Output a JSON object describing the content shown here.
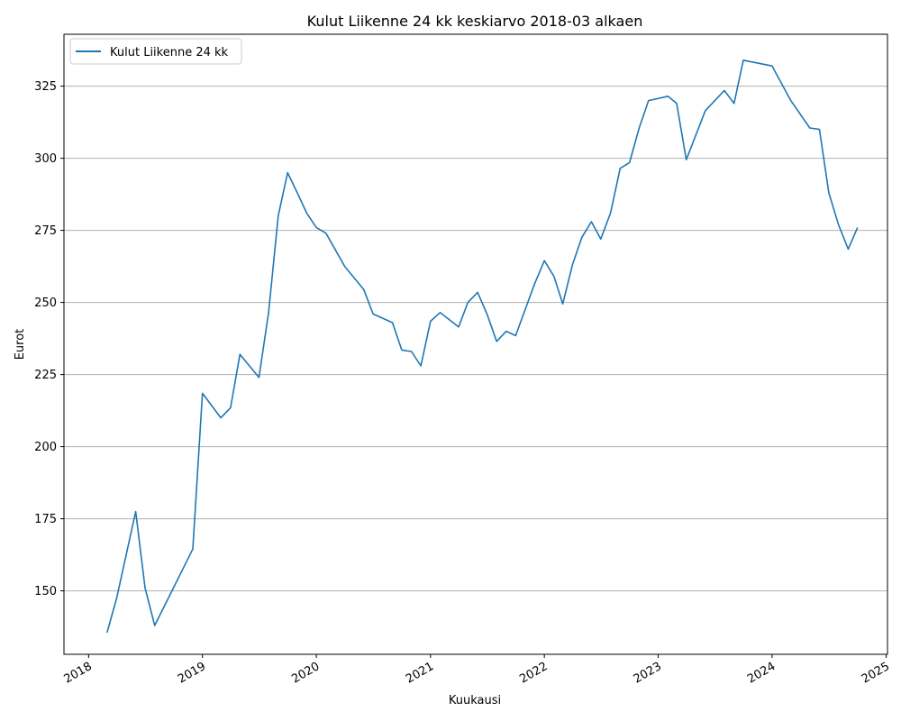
{
  "chart_data": {
    "type": "line",
    "title": "Kulut Liikenne 24 kk keskiarvo 2018-03 alkaen",
    "xlabel": "Kuukausi",
    "ylabel": "Eurot",
    "xlim": [
      "2017-10-14",
      "2025-01-05"
    ],
    "ylim": [
      128,
      343
    ],
    "y_ticks": [
      150,
      175,
      200,
      225,
      250,
      275,
      300,
      325
    ],
    "x_ticks": [
      "2018",
      "2019",
      "2020",
      "2021",
      "2022",
      "2023",
      "2024",
      "2025"
    ],
    "grid": "horizontal",
    "legend_position": "top-left",
    "color": "#1f77b4",
    "series": [
      {
        "name": "Kulut Liikenne 24 kk",
        "points": [
          [
            "2018-03-01",
            135.5
          ],
          [
            "2018-04-01",
            147.5
          ],
          [
            "2018-06-01",
            177.5
          ],
          [
            "2018-07-01",
            151.0
          ],
          [
            "2018-08-01",
            138.0
          ],
          [
            "2018-12-01",
            164.5
          ],
          [
            "2019-01-01",
            218.5
          ],
          [
            "2019-03-01",
            210.0
          ],
          [
            "2019-04-01",
            213.5
          ],
          [
            "2019-05-01",
            232.0
          ],
          [
            "2019-07-01",
            224.0
          ],
          [
            "2019-08-01",
            246.5
          ],
          [
            "2019-09-01",
            280.0
          ],
          [
            "2019-10-01",
            295.0
          ],
          [
            "2019-11-01",
            288.0
          ],
          [
            "2019-12-01",
            281.0
          ],
          [
            "2020-01-01",
            276.0
          ],
          [
            "2020-02-01",
            274.0
          ],
          [
            "2020-04-01",
            262.5
          ],
          [
            "2020-06-01",
            254.5
          ],
          [
            "2020-07-01",
            246.0
          ],
          [
            "2020-09-01",
            243.0
          ],
          [
            "2020-10-01",
            233.5
          ],
          [
            "2020-11-01",
            233.0
          ],
          [
            "2020-12-01",
            228.0
          ],
          [
            "2021-01-01",
            243.5
          ],
          [
            "2021-02-01",
            246.5
          ],
          [
            "2021-04-01",
            241.5
          ],
          [
            "2021-05-01",
            250.0
          ],
          [
            "2021-06-01",
            253.5
          ],
          [
            "2021-07-01",
            246.0
          ],
          [
            "2021-08-01",
            236.5
          ],
          [
            "2021-09-01",
            240.0
          ],
          [
            "2021-10-01",
            238.5
          ],
          [
            "2021-12-01",
            256.5
          ],
          [
            "2022-01-01",
            264.5
          ],
          [
            "2022-02-01",
            259.0
          ],
          [
            "2022-03-01",
            249.5
          ],
          [
            "2022-04-01",
            263.0
          ],
          [
            "2022-05-01",
            272.5
          ],
          [
            "2022-06-01",
            278.0
          ],
          [
            "2022-07-01",
            272.0
          ],
          [
            "2022-08-01",
            281.0
          ],
          [
            "2022-09-01",
            296.5
          ],
          [
            "2022-10-01",
            298.5
          ],
          [
            "2022-11-01",
            310.5
          ],
          [
            "2022-12-01",
            320.0
          ],
          [
            "2023-02-01",
            321.5
          ],
          [
            "2023-03-01",
            319.0
          ],
          [
            "2023-04-01",
            299.5
          ],
          [
            "2023-06-01",
            316.5
          ],
          [
            "2023-08-01",
            323.5
          ],
          [
            "2023-09-01",
            319.0
          ],
          [
            "2023-10-01",
            334.0
          ],
          [
            "2024-01-01",
            332.0
          ],
          [
            "2024-03-01",
            320.0
          ],
          [
            "2024-05-01",
            310.5
          ],
          [
            "2024-06-01",
            310.0
          ],
          [
            "2024-07-01",
            288.0
          ],
          [
            "2024-08-01",
            277.0
          ],
          [
            "2024-09-01",
            268.5
          ],
          [
            "2024-10-01",
            276.0
          ]
        ]
      }
    ]
  }
}
